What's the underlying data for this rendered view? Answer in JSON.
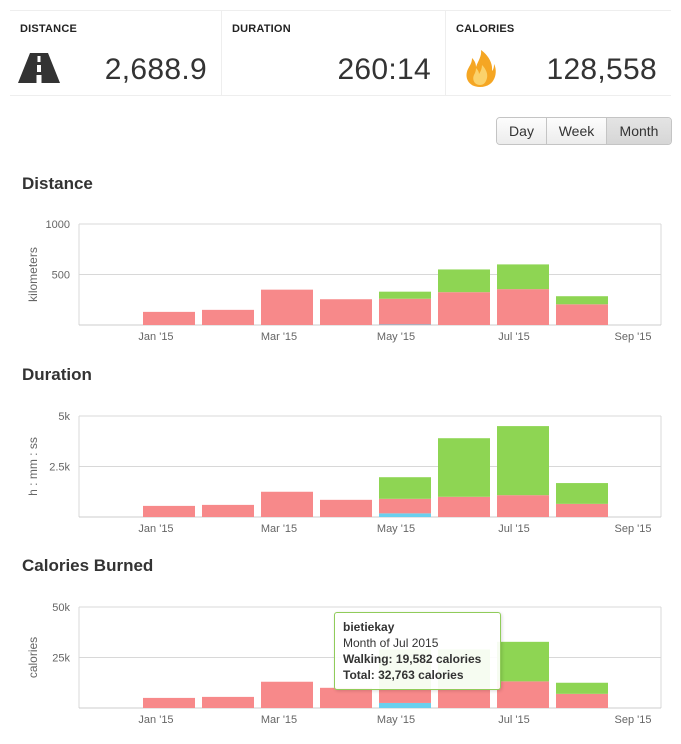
{
  "stats": [
    {
      "label": "DISTANCE",
      "value": "2,688.9",
      "icon": "road-icon"
    },
    {
      "label": "DURATION",
      "value": "260:14",
      "icon": ""
    },
    {
      "label": "CALORIES",
      "value": "128,558",
      "icon": "flame-icon"
    }
  ],
  "period_toggle": {
    "options": [
      "Day",
      "Week",
      "Month"
    ],
    "selected": "Month"
  },
  "colors": {
    "series_a": "#f7898a",
    "series_b": "#8ed553",
    "series_c": "#6ad0ee",
    "grid": "#d8d8d8"
  },
  "x_ticks": [
    "Jan '15",
    "Mar '15",
    "May '15",
    "Jul '15",
    "Sep '15"
  ],
  "chart_data": [
    {
      "type": "bar",
      "title": "Distance",
      "ylabel": "kilometers",
      "ylim": [
        0,
        1000
      ],
      "yticks": [
        {
          "value": 500,
          "label": "500"
        },
        {
          "value": 1000,
          "label": "1000"
        }
      ],
      "categories": [
        "Dec 2014",
        "Jan 2015",
        "Feb 2015",
        "Mar 2015",
        "Apr 2015",
        "May 2015",
        "Jun 2015",
        "Jul 2015",
        "Aug 2015"
      ],
      "stacked": true,
      "series": [
        {
          "color": "#6ad0ee",
          "values": [
            0,
            0,
            0,
            0,
            0,
            5,
            0,
            0,
            0
          ]
        },
        {
          "color": "#f7898a",
          "values": [
            0,
            130,
            150,
            350,
            255,
            255,
            325,
            355,
            205
          ]
        },
        {
          "color": "#8ed553",
          "values": [
            0,
            0,
            0,
            0,
            0,
            70,
            225,
            245,
            80
          ]
        }
      ]
    },
    {
      "type": "bar",
      "title": "Duration",
      "ylabel": "h : mm : ss",
      "ylim": [
        0,
        5000
      ],
      "yticks": [
        {
          "value": 2500,
          "label": "2.5k"
        },
        {
          "value": 5000,
          "label": "5k"
        }
      ],
      "categories": [
        "Dec 2014",
        "Jan 2015",
        "Feb 2015",
        "Mar 2015",
        "Apr 2015",
        "May 2015",
        "Jun 2015",
        "Jul 2015",
        "Aug 2015"
      ],
      "stacked": true,
      "series": [
        {
          "color": "#6ad0ee",
          "values": [
            0,
            0,
            0,
            0,
            0,
            180,
            0,
            0,
            0
          ]
        },
        {
          "color": "#f7898a",
          "values": [
            0,
            550,
            600,
            1250,
            850,
            720,
            1000,
            1080,
            650
          ]
        },
        {
          "color": "#8ed553",
          "values": [
            0,
            0,
            0,
            0,
            0,
            1070,
            2900,
            3420,
            1030
          ]
        }
      ]
    },
    {
      "type": "bar",
      "title": "Calories Burned",
      "ylabel": "calories",
      "ylim": [
        0,
        50000
      ],
      "yticks": [
        {
          "value": 25000,
          "label": "25k"
        },
        {
          "value": 50000,
          "label": "50k"
        }
      ],
      "categories": [
        "Dec 2014",
        "Jan 2015",
        "Feb 2015",
        "Mar 2015",
        "Apr 2015",
        "May 2015",
        "Jun 2015",
        "Jul 2015",
        "Aug 2015"
      ],
      "stacked": true,
      "series": [
        {
          "color": "#6ad0ee",
          "values": [
            0,
            0,
            0,
            0,
            0,
            2500,
            0,
            0,
            0
          ]
        },
        {
          "color": "#f7898a",
          "values": [
            0,
            5000,
            5500,
            13000,
            10000,
            7000,
            10000,
            13181,
            7000
          ]
        },
        {
          "color": "#8ed553",
          "values": [
            0,
            0,
            0,
            0,
            0,
            19500,
            19000,
            19582,
            5500
          ]
        }
      ]
    }
  ],
  "tooltip": {
    "user": "bietiekay",
    "period": "Month of Jul 2015",
    "line1_label": "Walking:",
    "line1_value": "19,582 calories",
    "line2_label": "Total:",
    "line2_value": "32,763 calories"
  }
}
